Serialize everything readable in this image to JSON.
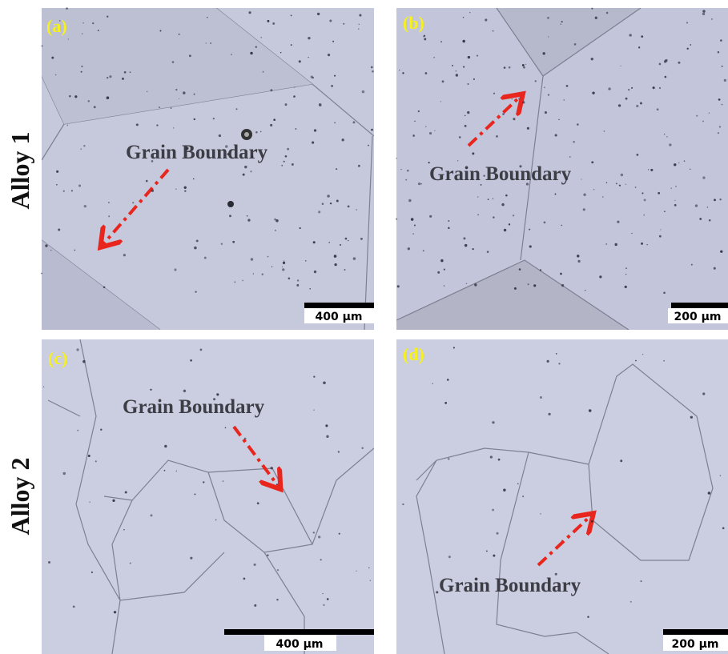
{
  "row_labels": [
    "Alloy 1",
    "Alloy 2"
  ],
  "panels": [
    {
      "label": "(a)",
      "annotation": "Grain Boundary",
      "scale_bar": "400 µm"
    },
    {
      "label": "(b)",
      "annotation": "Grain Boundary",
      "scale_bar": "200 µm"
    },
    {
      "label": "(c)",
      "annotation": "Grain Boundary",
      "scale_bar": "400 µm"
    },
    {
      "label": "(d)",
      "annotation": "Grain Boundary",
      "scale_bar": "200 µm"
    }
  ]
}
